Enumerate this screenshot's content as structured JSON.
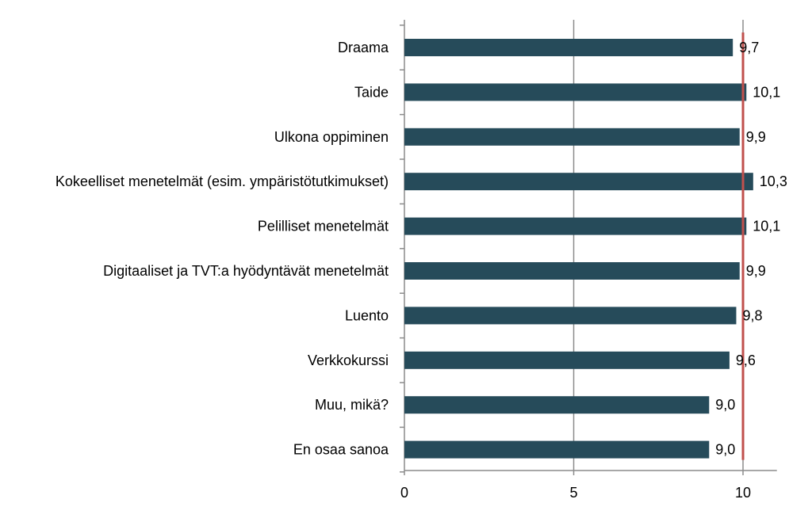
{
  "chart_data": {
    "type": "bar",
    "orientation": "horizontal",
    "categories": [
      "Draama",
      "Taide",
      "Ulkona oppiminen",
      "Kokeelliset menetelmät (esim. ympäristötutkimukset)",
      "Pelilliset menetelmät",
      "Digitaaliset ja TVT:a hyödyntävät menetelmät",
      "Luento",
      "Verkkokurssi",
      "Muu, mikä?",
      "En osaa sanoa"
    ],
    "values": [
      9.7,
      10.1,
      9.9,
      10.3,
      10.1,
      9.9,
      9.8,
      9.6,
      9.0,
      9.0
    ],
    "value_labels": [
      "9,7",
      "10,1",
      "9,9",
      "10,3",
      "10,1",
      "9,9",
      "9,8",
      "9,6",
      "9,0",
      "9,0"
    ],
    "xlim": [
      0,
      11
    ],
    "xticks": [
      0,
      5,
      10
    ],
    "xtick_labels": [
      "0",
      "5",
      "10"
    ],
    "reference_line": 10,
    "grid": "vertical",
    "legend": "none",
    "title": "",
    "xlabel": "",
    "ylabel": "",
    "colors": {
      "bar": "#264b5a",
      "reference_line": "#c0504d",
      "grid": "#8c8c8c",
      "axis": "#8c8c8c"
    }
  }
}
